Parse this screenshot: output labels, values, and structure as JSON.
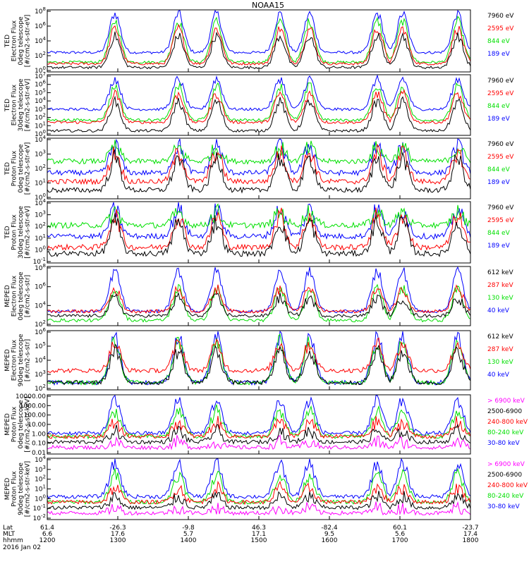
{
  "title": "NOAA15",
  "colors": {
    "black": "#000000",
    "red": "#ff0000",
    "green": "#00e000",
    "blue": "#0000ff",
    "magenta": "#ff00ff"
  },
  "panels": [
    {
      "ylabel": [
        "TED",
        "Electron Flux",
        "0deg telescope",
        "[#/cm2-s-str-eV]"
      ],
      "yticks": [
        "10^8",
        "10^6",
        "10^4",
        "10^2",
        "10^0"
      ],
      "legend": [
        {
          "text": "7960 eV",
          "color": "black"
        },
        {
          "text": "2595 eV",
          "color": "red"
        },
        {
          "text": "844 eV",
          "color": "green"
        },
        {
          "text": "189 eV",
          "color": "blue"
        }
      ]
    },
    {
      "ylabel": [
        "TED",
        "Electron Flux",
        "30deg telescope",
        "[#/cm2-s-str-eV]"
      ],
      "yticks": [
        "10^7",
        "10^6",
        "10^5",
        "10^4",
        "10^3",
        "10^2",
        "10^1",
        "10^0"
      ],
      "legend": [
        {
          "text": "7960 eV",
          "color": "black"
        },
        {
          "text": "2595 eV",
          "color": "red"
        },
        {
          "text": "844 eV",
          "color": "green"
        },
        {
          "text": "189 eV",
          "color": "blue"
        }
      ]
    },
    {
      "ylabel": [
        "TED",
        "Proton Flux",
        "0deg telescope",
        "[#/cm2-s-str-eV]"
      ],
      "yticks": [
        "10^4",
        "10^3",
        "10^2",
        "10^1",
        "10^0"
      ],
      "legend": [
        {
          "text": "7960 eV",
          "color": "black"
        },
        {
          "text": "2595 eV",
          "color": "red"
        },
        {
          "text": "844 eV",
          "color": "green"
        },
        {
          "text": "189 eV",
          "color": "blue"
        }
      ]
    },
    {
      "ylabel": [
        "TED",
        "Proton Flux",
        "30deg telescope",
        "[#/cm2-s-str-eV]"
      ],
      "yticks": [
        "10^4",
        "10^3",
        "10^2",
        "10^1",
        "10^0",
        "10^-1"
      ],
      "legend": [
        {
          "text": "7960 eV",
          "color": "black"
        },
        {
          "text": "2595 eV",
          "color": "red"
        },
        {
          "text": "844 eV",
          "color": "green"
        },
        {
          "text": "189 eV",
          "color": "blue"
        }
      ]
    },
    {
      "ylabel": [
        "MEPED",
        "Electron Flux",
        "0deg telescope",
        "[#/cm2-s-str]"
      ],
      "yticks": [
        "10^8",
        "10^6",
        "10^4",
        "10^2"
      ],
      "legend": [
        {
          "text": "612 keV",
          "color": "black"
        },
        {
          "text": "287 keV",
          "color": "red"
        },
        {
          "text": "130 keV",
          "color": "green"
        },
        {
          "text": "40 keV",
          "color": "blue"
        }
      ]
    },
    {
      "ylabel": [
        "MEPED",
        "Electron Flux",
        "90deg telescope",
        "[#/cm2-s-str]"
      ],
      "yticks": [
        "10^6",
        "10^5",
        "10^4",
        "10^3",
        "10^2"
      ],
      "legend": [
        {
          "text": "612 keV",
          "color": "black"
        },
        {
          "text": "287 keV",
          "color": "red"
        },
        {
          "text": "130 keV",
          "color": "green"
        },
        {
          "text": "40 keV",
          "color": "blue"
        }
      ]
    },
    {
      "ylabel": [
        "MEPED",
        "Proton Flux",
        "0deg telescope",
        "[#/cm2-s-str-keV]"
      ],
      "yticks": [
        "10000.00",
        "1000.00",
        "100.00",
        "10.00",
        "1.00",
        "0.10",
        "0.01"
      ],
      "legend": [
        {
          "text": "> 6900 keV",
          "color": "magenta"
        },
        {
          "text": "2500-6900",
          "color": "black"
        },
        {
          "text": "240-800 keV",
          "color": "red"
        },
        {
          "text": "80-240 keV",
          "color": "green"
        },
        {
          "text": "30-80 keV",
          "color": "blue"
        }
      ]
    },
    {
      "ylabel": [
        "MEPED",
        "Proton Flux",
        "90deg telescope",
        "[#/cm2-s-str-keV]"
      ],
      "yticks": [
        "10^4",
        "10^3",
        "10^2",
        "10^1",
        "10^0",
        "10^-1",
        "10^-2"
      ],
      "legend": [
        {
          "text": "> 6900 keV",
          "color": "magenta"
        },
        {
          "text": "2500-6900",
          "color": "black"
        },
        {
          "text": "240-800 keV",
          "color": "red"
        },
        {
          "text": "80-240 keV",
          "color": "green"
        },
        {
          "text": "30-80 keV",
          "color": "blue"
        }
      ]
    }
  ],
  "footer": {
    "row_labels": [
      "Lat",
      "MLT",
      "hhmm",
      "2016 Jan 02"
    ],
    "columns": [
      {
        "lat": "61.4",
        "mlt": "6.6",
        "hhmm": "1200"
      },
      {
        "lat": "-26.3",
        "mlt": "17.6",
        "hhmm": "1300"
      },
      {
        "lat": "-9.8",
        "mlt": "5.7",
        "hhmm": "1400"
      },
      {
        "lat": "46.3",
        "mlt": "17.1",
        "hhmm": "1500"
      },
      {
        "lat": "-82.4",
        "mlt": "9.5",
        "hhmm": "1600"
      },
      {
        "lat": "60.1",
        "mlt": "5.6",
        "hhmm": "1700"
      },
      {
        "lat": "-23.7",
        "mlt": "17.4",
        "hhmm": "1800"
      }
    ]
  },
  "chart_data": {
    "type": "line",
    "title": "NOAA15",
    "x_range": [
      "1200",
      "1800"
    ],
    "x_ticks": [
      "1200",
      "1300",
      "1400",
      "1500",
      "1600",
      "1700",
      "1800"
    ],
    "y_scale": "log",
    "description_of_series": "Eight stacked log-scale time series panels of NOAA-15 TED and MEPED particle flux, 4-5 energy channels each",
    "bursts_at_fraction_of_time_axis": [
      0.16,
      0.31,
      0.4,
      0.55,
      0.62,
      0.78,
      0.84,
      0.97
    ],
    "panels": [
      {
        "panel": "TED Electron 0deg",
        "series": [
          "7960 eV",
          "2595 eV",
          "844 eV",
          "189 eV"
        ],
        "baseline_log10": [
          0.3,
          0.8,
          1.0,
          2.3
        ],
        "peak_log10": [
          4.5,
          5.5,
          6.5,
          7.5
        ]
      },
      {
        "panel": "TED Electron 30deg",
        "series": [
          "7960 eV",
          "2595 eV",
          "844 eV",
          "189 eV"
        ],
        "baseline_log10": [
          0.2,
          1.3,
          1.6,
          3.0
        ],
        "peak_log10": [
          4.0,
          5.0,
          6.0,
          7.0
        ]
      },
      {
        "panel": "TED Proton 0deg",
        "series": [
          "7960 eV",
          "2595 eV",
          "844 eV",
          "189 eV"
        ],
        "baseline_log10": [
          0.6,
          1.2,
          2.6,
          1.8
        ],
        "peak_log10": [
          2.8,
          3.2,
          3.5,
          3.7
        ]
      },
      {
        "panel": "TED Proton 30deg",
        "series": [
          "7960 eV",
          "2595 eV",
          "844 eV",
          "189 eV"
        ],
        "baseline_log10": [
          0.6,
          1.0,
          2.4,
          1.7
        ],
        "peak_log10": [
          2.6,
          3.0,
          3.2,
          3.4
        ]
      },
      {
        "panel": "MEPED Electron 0deg",
        "series": [
          "612 keV",
          "287 keV",
          "130 keV",
          "40 keV"
        ],
        "baseline_log10": [
          1.5,
          2.0,
          1.0,
          2.0
        ],
        "peak_log10": [
          3.5,
          4.5,
          4.5,
          6.5
        ]
      },
      {
        "panel": "MEPED Electron 90deg",
        "series": [
          "612 keV",
          "287 keV",
          "130 keV",
          "40 keV"
        ],
        "baseline_log10": [
          2.0,
          3.0,
          2.0,
          2.0
        ],
        "peak_log10": [
          4.6,
          5.2,
          5.4,
          5.8
        ]
      },
      {
        "panel": "MEPED Proton 0deg",
        "series": [
          "> 6900 keV",
          "2500-6900",
          "240-800 keV",
          "80-240 keV",
          "30-80 keV"
        ],
        "baseline_log10": [
          -1.0,
          -0.5,
          0.0,
          0.0,
          0.3
        ],
        "peak_log10": [
          -0.5,
          0.5,
          1.3,
          2.3,
          3.3
        ]
      },
      {
        "panel": "MEPED Proton 90deg",
        "series": [
          "> 6900 keV",
          "2500-6900",
          "240-800 keV",
          "80-240 keV",
          "30-80 keV"
        ],
        "baseline_log10": [
          -1.0,
          -0.5,
          0.0,
          0.0,
          0.5
        ],
        "peak_log10": [
          -0.5,
          0.5,
          1.3,
          2.5,
          3.5
        ]
      }
    ]
  }
}
